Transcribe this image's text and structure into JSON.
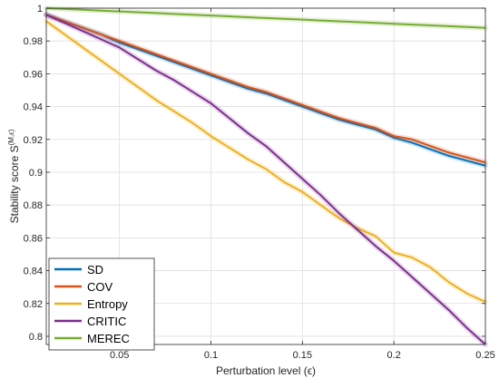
{
  "chart_data": {
    "type": "line",
    "title": "",
    "xlabel": "Perturbation level (ϵ)",
    "ylabel_main": "Stability score S",
    "ylabel_sup": "(M,ϵ)",
    "xlim": [
      0.01,
      0.25
    ],
    "ylim": [
      0.795,
      1.0
    ],
    "xticks": [
      0.05,
      0.1,
      0.15,
      0.2,
      0.25
    ],
    "xtick_labels": [
      "0.05",
      "0.1",
      "0.15",
      "0.2",
      "0.25"
    ],
    "yticks": [
      0.8,
      0.82,
      0.84,
      0.86,
      0.88,
      0.9,
      0.92,
      0.94,
      0.96,
      0.98,
      1.0
    ],
    "ytick_labels": [
      "0.8",
      "0.82",
      "0.84",
      "0.86",
      "0.88",
      "0.9",
      "0.92",
      "0.94",
      "0.96",
      "0.98",
      "1"
    ],
    "grid": true,
    "legend_position": "bottom-left",
    "x": [
      0.01,
      0.02,
      0.03,
      0.04,
      0.05,
      0.06,
      0.07,
      0.08,
      0.09,
      0.1,
      0.11,
      0.12,
      0.13,
      0.14,
      0.15,
      0.16,
      0.17,
      0.18,
      0.19,
      0.2,
      0.21,
      0.22,
      0.23,
      0.24,
      0.25
    ],
    "series": [
      {
        "name": "SD",
        "color": "#0072BD",
        "values": [
          0.996,
          0.992,
          0.988,
          0.984,
          0.979,
          0.975,
          0.971,
          0.967,
          0.963,
          0.959,
          0.955,
          0.951,
          0.948,
          0.944,
          0.94,
          0.936,
          0.932,
          0.929,
          0.926,
          0.921,
          0.918,
          0.914,
          0.91,
          0.907,
          0.904
        ]
      },
      {
        "name": "COV",
        "color": "#D95319",
        "values": [
          0.996,
          0.992,
          0.988,
          0.984,
          0.98,
          0.976,
          0.972,
          0.968,
          0.964,
          0.96,
          0.956,
          0.952,
          0.949,
          0.945,
          0.941,
          0.937,
          0.933,
          0.93,
          0.927,
          0.922,
          0.92,
          0.916,
          0.912,
          0.909,
          0.906
        ]
      },
      {
        "name": "Entropy",
        "color": "#EDB120",
        "values": [
          0.992,
          0.984,
          0.976,
          0.968,
          0.96,
          0.952,
          0.944,
          0.937,
          0.93,
          0.922,
          0.915,
          0.908,
          0.902,
          0.894,
          0.888,
          0.88,
          0.872,
          0.866,
          0.861,
          0.851,
          0.848,
          0.842,
          0.833,
          0.826,
          0.821
        ]
      },
      {
        "name": "CRITIC",
        "color": "#7E2F8E",
        "values": [
          0.996,
          0.991,
          0.986,
          0.981,
          0.976,
          0.969,
          0.962,
          0.956,
          0.949,
          0.942,
          0.933,
          0.924,
          0.916,
          0.906,
          0.896,
          0.886,
          0.875,
          0.865,
          0.855,
          0.846,
          0.836,
          0.826,
          0.816,
          0.805,
          0.795
        ]
      },
      {
        "name": "MEREC",
        "color": "#77AC30",
        "values": [
          1.0,
          0.9995,
          0.999,
          0.9985,
          0.998,
          0.9975,
          0.997,
          0.9965,
          0.996,
          0.9955,
          0.995,
          0.9945,
          0.994,
          0.9935,
          0.993,
          0.9925,
          0.992,
          0.9915,
          0.991,
          0.9905,
          0.99,
          0.9895,
          0.989,
          0.9885,
          0.988
        ]
      }
    ]
  }
}
